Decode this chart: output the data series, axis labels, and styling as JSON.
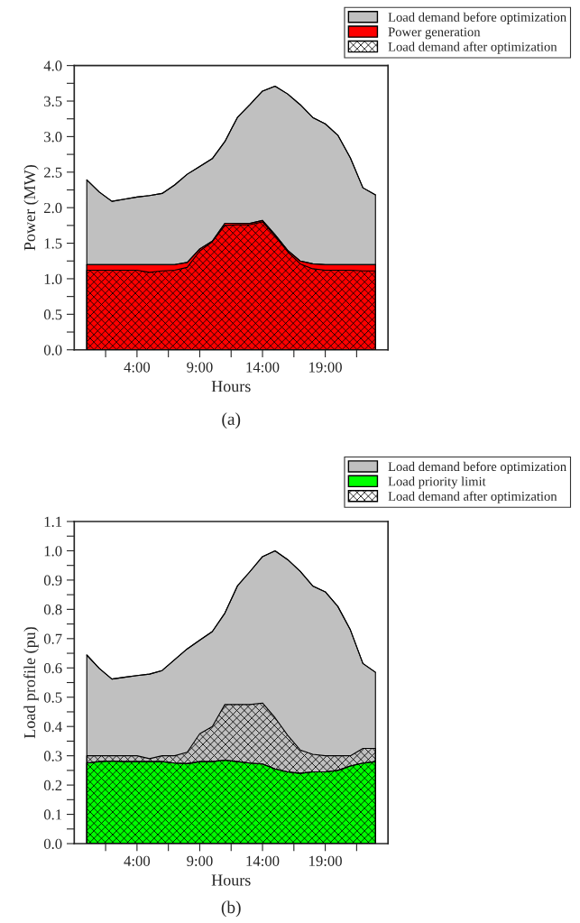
{
  "chart_data": [
    {
      "type": "area",
      "xlabel": "Hours",
      "ylabel": "Power (MW)",
      "annotations": [
        "(a)"
      ],
      "x": [
        0,
        1,
        2,
        3,
        4,
        5,
        6,
        7,
        8,
        9,
        10,
        11,
        12,
        13,
        14,
        15,
        16,
        17,
        18,
        19,
        20,
        21,
        22,
        23
      ],
      "series": [
        {
          "name": "Load demand before optimization",
          "color": "#c0c0c0",
          "values": [
            2.39,
            2.22,
            2.09,
            2.12,
            2.15,
            2.17,
            2.2,
            2.32,
            2.47,
            2.58,
            2.69,
            2.93,
            3.27,
            3.45,
            3.64,
            3.71,
            3.6,
            3.45,
            3.27,
            3.18,
            3.02,
            2.7,
            2.28,
            2.18
          ]
        },
        {
          "name": "Power generation",
          "color": "#ff0000",
          "values": [
            1.2,
            1.2,
            1.2,
            1.2,
            1.2,
            1.2,
            1.2,
            1.2,
            1.23,
            1.42,
            1.53,
            1.78,
            1.78,
            1.78,
            1.82,
            1.62,
            1.4,
            1.25,
            1.21,
            1.2,
            1.2,
            1.2,
            1.2,
            1.2
          ]
        },
        {
          "name": "Load demand after optimization",
          "color": "#000000",
          "values": [
            1.12,
            1.12,
            1.12,
            1.12,
            1.12,
            1.09,
            1.11,
            1.12,
            1.16,
            1.39,
            1.52,
            1.75,
            1.76,
            1.76,
            1.8,
            1.6,
            1.38,
            1.21,
            1.14,
            1.12,
            1.12,
            1.12,
            1.11,
            1.11
          ]
        }
      ],
      "xlim": [
        -1,
        24
      ],
      "xticks": [
        {
          "value": 1.5,
          "label": null
        },
        {
          "value": 4,
          "label": "4:00"
        },
        {
          "value": 6.5,
          "label": null
        },
        {
          "value": 9,
          "label": "9:00"
        },
        {
          "value": 11.5,
          "label": null
        },
        {
          "value": 14,
          "label": "14:00"
        },
        {
          "value": 16.5,
          "label": null
        },
        {
          "value": 19,
          "label": "19:00"
        },
        {
          "value": 21.5,
          "label": null
        }
      ],
      "ylim": [
        0,
        4.0
      ],
      "yticks": [
        {
          "value": 0,
          "label": "0.0"
        },
        {
          "value": 0.25,
          "label": null
        },
        {
          "value": 0.5,
          "label": "0.5"
        },
        {
          "value": 0.75,
          "label": null
        },
        {
          "value": 1,
          "label": "1.0"
        },
        {
          "value": 1.25,
          "label": null
        },
        {
          "value": 1.5,
          "label": "1.5"
        },
        {
          "value": 1.75,
          "label": null
        },
        {
          "value": 2,
          "label": "2.0"
        },
        {
          "value": 2.25,
          "label": null
        },
        {
          "value": 2.5,
          "label": "2.5"
        },
        {
          "value": 2.75,
          "label": null
        },
        {
          "value": 3,
          "label": "3.0"
        },
        {
          "value": 3.25,
          "label": null
        },
        {
          "value": 3.5,
          "label": "3.5"
        },
        {
          "value": 3.75,
          "label": null
        },
        {
          "value": 4,
          "label": "4.0"
        }
      ],
      "legend": "top right",
      "grid": false
    },
    {
      "type": "area",
      "xlabel": "Hours",
      "ylabel": "Load profile (pu)",
      "annotations": [
        "(b)"
      ],
      "x": [
        0,
        1,
        2,
        3,
        4,
        5,
        6,
        7,
        8,
        9,
        10,
        11,
        12,
        13,
        14,
        15,
        16,
        17,
        18,
        19,
        20,
        21,
        22,
        23
      ],
      "series": [
        {
          "name": "Load demand before optimization",
          "color": "#c0c0c0",
          "values": [
            0.644,
            0.598,
            0.562,
            0.568,
            0.574,
            0.579,
            0.591,
            0.628,
            0.665,
            0.695,
            0.724,
            0.787,
            0.88,
            0.929,
            0.98,
            1.0,
            0.97,
            0.93,
            0.88,
            0.86,
            0.81,
            0.73,
            0.615,
            0.585
          ]
        },
        {
          "name": "Load priority limit",
          "color": "#00ff00",
          "values": [
            0.275,
            0.28,
            0.282,
            0.28,
            0.28,
            0.28,
            0.28,
            0.275,
            0.273,
            0.28,
            0.28,
            0.285,
            0.28,
            0.275,
            0.272,
            0.255,
            0.245,
            0.24,
            0.245,
            0.245,
            0.25,
            0.265,
            0.275,
            0.28
          ]
        },
        {
          "name": "Load demand after optimization",
          "color": "#000000",
          "values": [
            0.3,
            0.3,
            0.3,
            0.3,
            0.3,
            0.29,
            0.3,
            0.3,
            0.312,
            0.375,
            0.4,
            0.475,
            0.475,
            0.475,
            0.48,
            0.43,
            0.37,
            0.32,
            0.305,
            0.3,
            0.3,
            0.3,
            0.325,
            0.325
          ]
        }
      ],
      "xlim": [
        -1,
        24
      ],
      "xticks": [
        {
          "value": 1.5,
          "label": null
        },
        {
          "value": 4,
          "label": "4:00"
        },
        {
          "value": 6.5,
          "label": null
        },
        {
          "value": 9,
          "label": "9:00"
        },
        {
          "value": 11.5,
          "label": null
        },
        {
          "value": 14,
          "label": "14:00"
        },
        {
          "value": 16.5,
          "label": null
        },
        {
          "value": 19,
          "label": "19:00"
        },
        {
          "value": 21.5,
          "label": null
        }
      ],
      "ylim": [
        0,
        1.1
      ],
      "yticks": [
        {
          "value": 0,
          "label": "0.0"
        },
        {
          "value": 0.05,
          "label": null
        },
        {
          "value": 0.1,
          "label": "0.1"
        },
        {
          "value": 0.15,
          "label": null
        },
        {
          "value": 0.2,
          "label": "0.2"
        },
        {
          "value": 0.25,
          "label": null
        },
        {
          "value": 0.3,
          "label": "0.3"
        },
        {
          "value": 0.35,
          "label": null
        },
        {
          "value": 0.4,
          "label": "0.4"
        },
        {
          "value": 0.45,
          "label": null
        },
        {
          "value": 0.5,
          "label": "0.5"
        },
        {
          "value": 0.55,
          "label": null
        },
        {
          "value": 0.6,
          "label": "0.6"
        },
        {
          "value": 0.65,
          "label": null
        },
        {
          "value": 0.7,
          "label": "0.7"
        },
        {
          "value": 0.75,
          "label": null
        },
        {
          "value": 0.8,
          "label": "0.8"
        },
        {
          "value": 0.85,
          "label": null
        },
        {
          "value": 0.9,
          "label": "0.9"
        },
        {
          "value": 0.95,
          "label": null
        },
        {
          "value": 1.0,
          "label": "1.0"
        },
        {
          "value": 1.05,
          "label": null
        },
        {
          "value": 1.1,
          "label": "1.1"
        }
      ],
      "legend": "top right",
      "grid": false
    }
  ]
}
